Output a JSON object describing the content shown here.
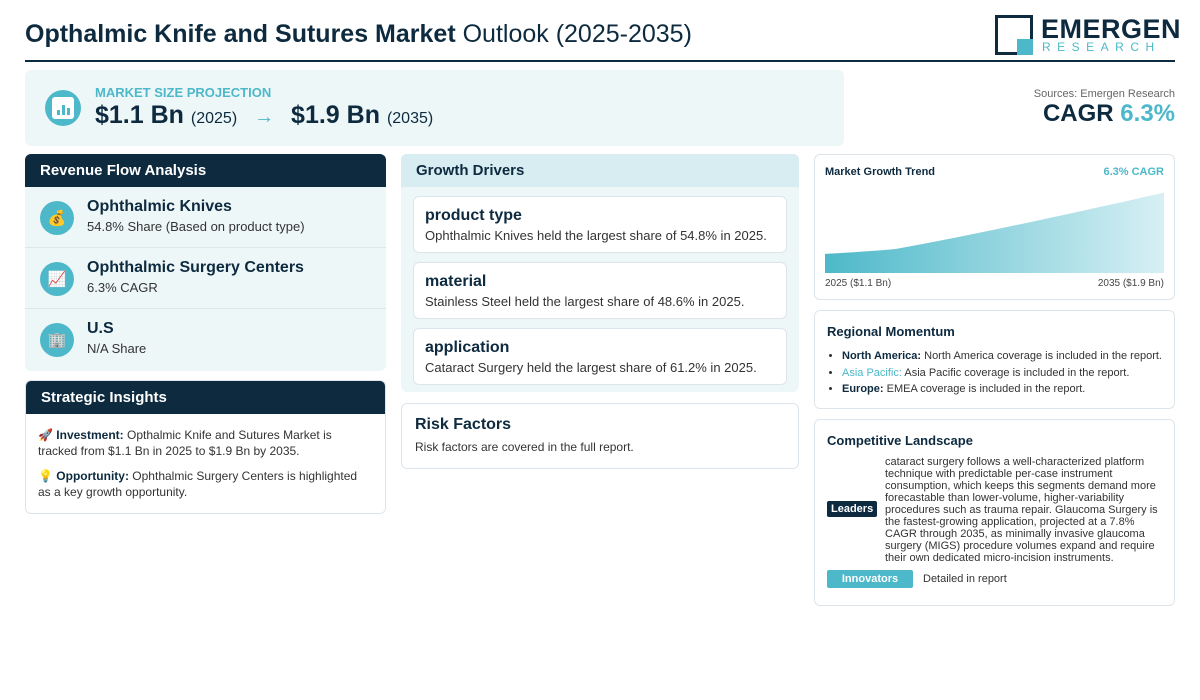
{
  "header": {
    "title_bold": "Opthalmic Knife and Sutures Market",
    "title_light": "Outlook (2025-2035)",
    "logo_name": "EMERGEN",
    "logo_sub": "RESEARCH"
  },
  "projection": {
    "label": "MARKET SIZE PROJECTION",
    "start_value": "$1.1 Bn",
    "start_year": "(2025)",
    "arrow": "→",
    "end_value": "$1.9 Bn",
    "end_year": "(2035)",
    "icon": "bar-chart-icon"
  },
  "summary": {
    "sources": "Sources: Emergen Research",
    "cagr_label": "CAGR",
    "cagr_value": "6.3%"
  },
  "revenue": {
    "title": "Revenue Flow Analysis",
    "items": [
      {
        "icon": "money-bag-icon",
        "title": "Ophthalmic Knives",
        "sub": "54.8% Share (Based on product type)"
      },
      {
        "icon": "trend-chart-icon",
        "title": "Ophthalmic Surgery Centers",
        "sub": "6.3% CAGR"
      },
      {
        "icon": "building-icon",
        "title": "U.S",
        "sub": "N/A Share"
      }
    ]
  },
  "strategic": {
    "title": "Strategic Insights",
    "investment_label": "Investment:",
    "investment_text": "Opthalmic Knife and Sutures Market is tracked from $1.1 Bn in 2025 to $1.9 Bn by 2035.",
    "opportunity_label": "Opportunity:",
    "opportunity_text": "Ophthalmic Surgery Centers is highlighted as a key growth opportunity."
  },
  "drivers": {
    "title": "Growth Drivers",
    "items": [
      {
        "title": "product type",
        "text": "Ophthalmic Knives held the largest share of 54.8% in 2025."
      },
      {
        "title": "material",
        "text": "Stainless Steel held the largest share of 48.6% in 2025."
      },
      {
        "title": "application",
        "text": "Cataract Surgery held the largest share of 61.2% in 2025."
      }
    ]
  },
  "risk": {
    "title": "Risk Factors",
    "text": "Risk factors are covered in the full report."
  },
  "trend": {
    "title": "Market Growth Trend",
    "cagr": "6.3% CAGR",
    "start_label": "2025 ($1.1 Bn)",
    "end_label": "2035 ($1.9 Bn)",
    "accent_color": "#4db8c9"
  },
  "chart_data": {
    "type": "area",
    "x": [
      "2025",
      "2035"
    ],
    "values": [
      1.1,
      1.9
    ],
    "title": "Market Growth Trend",
    "xlabel": "",
    "ylabel": ""
  },
  "regional": {
    "title": "Regional Momentum",
    "items": [
      {
        "name": "North America:",
        "text": "North America coverage is included in the report."
      },
      {
        "name": "Asia Pacific:",
        "text": "Asia Pacific coverage is included in the report."
      },
      {
        "name": "Europe:",
        "text": "EMEA coverage is included in the report."
      }
    ]
  },
  "competitive": {
    "title": "Competitive Landscape",
    "leaders_label": "Leaders",
    "leaders_text": "cataract surgery follows a well-characterized platform technique with predictable per-case instrument consumption, which keeps this segments demand more forecastable than lower-volume, higher-variability procedures such as trauma repair. Glaucoma Surgery is the fastest-growing application, projected at a 7.8% CAGR through 2035, as minimally invasive glaucoma surgery (MIGS) procedure volumes expand and require their own dedicated micro-incision instruments.",
    "innovators_label": "Innovators",
    "innovators_text": "Detailed in report"
  }
}
